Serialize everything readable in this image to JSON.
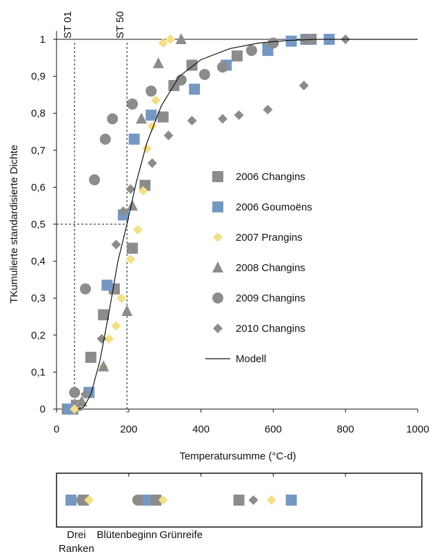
{
  "chart_data": {
    "type": "scatter",
    "title": "",
    "xlabel": "Temperatursumme (°C-d)",
    "ylabel": "TKumulierte standardisierte Dichte",
    "xlim": [
      0,
      1000
    ],
    "ylim": [
      0,
      1
    ],
    "x_ticks": [
      "0",
      "200",
      "400",
      "600",
      "800",
      "1000"
    ],
    "y_ticks": [
      "0",
      "0,1",
      "0,2",
      "0,3",
      "0,4",
      "0,5",
      "0,6",
      "0,7",
      "0,8",
      "0,9",
      "1"
    ],
    "grid": false,
    "legend_position": "center-right",
    "reference_lines": [
      {
        "label": "ST 01",
        "x": 50,
        "y": null
      },
      {
        "label": "ST 50",
        "x": 195,
        "y": 0.5
      }
    ],
    "colors": {
      "grey": "#8c8c8c",
      "blue": "#7598c3",
      "yellow": "#f5df85",
      "line": "#111111"
    },
    "series": [
      {
        "name": "2006 Changins",
        "marker": "square",
        "color": "#8c8c8c",
        "points": [
          [
            30,
            0.0
          ],
          [
            45,
            0.0
          ],
          [
            55,
            0.01
          ],
          [
            95,
            0.14
          ],
          [
            130,
            0.255
          ],
          [
            160,
            0.325
          ],
          [
            210,
            0.435
          ],
          [
            245,
            0.605
          ],
          [
            295,
            0.79
          ],
          [
            325,
            0.875
          ],
          [
            375,
            0.93
          ],
          [
            500,
            0.955
          ],
          [
            585,
            0.975
          ],
          [
            705,
            1.0
          ]
        ]
      },
      {
        "name": "2006 Goumoëns",
        "marker": "square",
        "color": "#7598c3",
        "points": [
          [
            35,
            0.0
          ],
          [
            90,
            0.045
          ],
          [
            140,
            0.335
          ],
          [
            185,
            0.525
          ],
          [
            215,
            0.73
          ],
          [
            262,
            0.795
          ],
          [
            382,
            0.865
          ],
          [
            470,
            0.93
          ],
          [
            585,
            0.97
          ],
          [
            650,
            0.995
          ],
          [
            690,
            1.0
          ],
          [
            755,
            1.0
          ]
        ]
      },
      {
        "name": "2007 Prangins",
        "marker": "diamond",
        "color": "#f5df85",
        "points": [
          [
            50,
            0.0
          ],
          [
            70,
            0.015
          ],
          [
            130,
            0.115
          ],
          [
            145,
            0.19
          ],
          [
            165,
            0.225
          ],
          [
            180,
            0.3
          ],
          [
            205,
            0.405
          ],
          [
            225,
            0.485
          ],
          [
            240,
            0.59
          ],
          [
            250,
            0.705
          ],
          [
            265,
            0.765
          ],
          [
            275,
            0.835
          ],
          [
            295,
            0.99
          ],
          [
            315,
            1.0
          ]
        ]
      },
      {
        "name": "2008 Changins",
        "marker": "triangle",
        "color": "#8c8c8c",
        "points": [
          [
            70,
            0.02
          ],
          [
            130,
            0.115
          ],
          [
            195,
            0.265
          ],
          [
            210,
            0.55
          ],
          [
            235,
            0.785
          ],
          [
            282,
            0.935
          ],
          [
            345,
            1.0
          ]
        ]
      },
      {
        "name": "2009 Changins",
        "marker": "circle",
        "color": "#8c8c8c",
        "points": [
          [
            50,
            0.045
          ],
          [
            80,
            0.325
          ],
          [
            105,
            0.62
          ],
          [
            135,
            0.73
          ],
          [
            155,
            0.785
          ],
          [
            210,
            0.825
          ],
          [
            262,
            0.86
          ],
          [
            345,
            0.89
          ],
          [
            410,
            0.905
          ],
          [
            460,
            0.925
          ],
          [
            540,
            0.97
          ],
          [
            600,
            0.99
          ],
          [
            690,
            1.0
          ]
        ]
      },
      {
        "name": "2010 Changins",
        "marker": "diamond",
        "color": "#8c8c8c",
        "points": [
          [
            80,
            0.04
          ],
          [
            125,
            0.19
          ],
          [
            165,
            0.445
          ],
          [
            185,
            0.535
          ],
          [
            205,
            0.595
          ],
          [
            265,
            0.665
          ],
          [
            310,
            0.74
          ],
          [
            375,
            0.78
          ],
          [
            460,
            0.785
          ],
          [
            505,
            0.795
          ],
          [
            585,
            0.81
          ],
          [
            685,
            0.875
          ],
          [
            800,
            1.0
          ]
        ]
      },
      {
        "name": "Modell",
        "marker": "line",
        "color": "#111111",
        "points": [
          [
            60,
            0.0
          ],
          [
            75,
            0.005
          ],
          [
            95,
            0.04
          ],
          [
            120,
            0.13
          ],
          [
            145,
            0.26
          ],
          [
            170,
            0.4
          ],
          [
            195,
            0.5
          ],
          [
            220,
            0.61
          ],
          [
            250,
            0.72
          ],
          [
            290,
            0.82
          ],
          [
            340,
            0.9
          ],
          [
            400,
            0.945
          ],
          [
            480,
            0.975
          ],
          [
            560,
            0.99
          ],
          [
            640,
            0.997
          ],
          [
            720,
            1.0
          ],
          [
            1000,
            1.0
          ]
        ]
      }
    ],
    "stage_strip": {
      "labels": [
        "Drei Ranken",
        "Blütenbeginn",
        "Grünreife"
      ],
      "label_x": [
        55,
        195,
        345
      ],
      "markers": [
        {
          "series": "2006 Goumoëns",
          "x": [
            40,
            245,
            650
          ]
        },
        {
          "series": "2006 Changins",
          "x": [
            75,
            275,
            505
          ]
        },
        {
          "series": "2009 Changins",
          "x": [
            70,
            225,
            0
          ]
        },
        {
          "series": "2007 Prangins",
          "x": [
            90,
            295,
            595
          ]
        },
        {
          "series": "2010 Changins",
          "x": [
            0,
            0,
            545
          ]
        }
      ]
    }
  }
}
